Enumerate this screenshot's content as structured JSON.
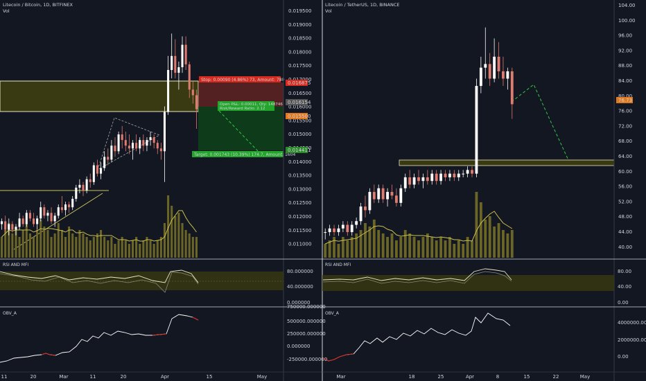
{
  "colors": {
    "background": "#131722",
    "up": "#ffffff",
    "down": "#e07b6f",
    "volume": "#6b6526",
    "volume_line": "#ccc04a",
    "zone_fill": "#3a3a12",
    "zone_border": "#e8e8c0",
    "stop_fill": "#8a2a22",
    "target_fill": "#0d4a1a",
    "stop_label": "#d62a1e",
    "target_label": "#22a52a",
    "dashed": "#2ecc40",
    "rsi_line": "#e8e8c0",
    "rsi_band": "#3a3a12",
    "obv_line": "#ffffff",
    "obv_down": "#d62a1e",
    "price_tag_green": "#2a8a2a",
    "price_tag_red": "#d62a1e",
    "price_tag_orange": "#e0791e",
    "price_tag_gray": "#555555"
  },
  "left": {
    "title": "Litecoin / Bitcoin, 1D, BITFINEX",
    "vol_label": "Vol",
    "price_ticks": [
      "0.019500",
      "0.019000",
      "0.018500",
      "0.018000",
      "0.017500",
      "0.017000",
      "0.016500",
      "0.016000",
      "0.015500",
      "0.015000",
      "0.014500",
      "0.014000",
      "0.013500",
      "0.013000",
      "0.012500",
      "0.012000",
      "0.011500",
      "0.011000"
    ],
    "position": {
      "stop_text": "Stop: 0.00090 (4.86%) 73, Amount: 780",
      "target_text": "Target: 0.001743 (10.39%) 174.7, Amount: 1604",
      "pnl_text": "Open P&L: 0.00011, Qty: 148746",
      "rr_text": "Risk/Reward Ratio: 2.12"
    },
    "price_tags": {
      "stop": "0.016875",
      "current": "0.016154",
      "entry": "0.015500",
      "target": "0.014411"
    },
    "rsi_label": "RSI AND MFI",
    "rsi_ticks": [
      "80.000000",
      "40.000000",
      "0.000000"
    ],
    "obv_label": "OBV_A",
    "obv_ticks": [
      "750000.000000",
      "500000.000000",
      "250000.000000",
      "0.000000",
      "-250000.000000"
    ],
    "time_ticks": [
      "11",
      "20",
      "Mar",
      "11",
      "20",
      "Apr",
      "15",
      "May"
    ]
  },
  "right": {
    "title": "Litecoin / TetherUS, 1D, BINANCE",
    "vol_label": "Vol",
    "price_ticks": [
      "104.00",
      "100.00",
      "96.00",
      "92.00",
      "88.00",
      "84.00",
      "80.00",
      "76.00",
      "72.00",
      "68.00",
      "64.00",
      "60.00",
      "56.00",
      "52.00",
      "48.00",
      "44.00",
      "40.00"
    ],
    "price_tags": {
      "current": "76.73"
    },
    "rsi_label": "RSI AND MFI",
    "rsi_ticks": [
      "80.00",
      "40.00",
      "0.00"
    ],
    "obv_label": "OBV_A",
    "obv_ticks": [
      "4000000.00",
      "2000000.00",
      "0.00"
    ],
    "time_ticks": [
      "Mar",
      "18",
      "25",
      "Apr",
      "8",
      "15",
      "22",
      "May"
    ]
  },
  "chart_data": [
    {
      "type": "candlestick",
      "title": "Litecoin / Bitcoin, 1D, BITFINEX",
      "ylim": [
        0.0108,
        0.0198
      ],
      "series": [
        {
          "name": "LTC/BTC",
          "values": [
            [
              0.012,
              0.0122,
              0.0118,
              0.0121
            ],
            [
              0.0121,
              0.0123,
              0.0117,
              0.0118
            ],
            [
              0.0118,
              0.0122,
              0.0116,
              0.012
            ],
            [
              0.012,
              0.0121,
              0.0117,
              0.0118
            ],
            [
              0.0118,
              0.012,
              0.0116,
              0.0119
            ],
            [
              0.0119,
              0.0124,
              0.0118,
              0.0122
            ],
            [
              0.0122,
              0.0123,
              0.0119,
              0.012
            ],
            [
              0.012,
              0.0125,
              0.0119,
              0.0124
            ],
            [
              0.0124,
              0.0125,
              0.0121,
              0.0122
            ],
            [
              0.0122,
              0.0124,
              0.0119,
              0.012
            ],
            [
              0.012,
              0.0123,
              0.0118,
              0.0122
            ],
            [
              0.0122,
              0.0128,
              0.0121,
              0.0126
            ],
            [
              0.0126,
              0.0127,
              0.0122,
              0.0123
            ],
            [
              0.0123,
              0.0125,
              0.0121,
              0.0124
            ],
            [
              0.0124,
              0.0126,
              0.012,
              0.0121
            ],
            [
              0.0121,
              0.0124,
              0.0119,
              0.0123
            ],
            [
              0.0123,
              0.0127,
              0.0122,
              0.0126
            ],
            [
              0.0126,
              0.013,
              0.0124,
              0.0125
            ],
            [
              0.0125,
              0.0128,
              0.0123,
              0.0127
            ],
            [
              0.0127,
              0.0128,
              0.0124,
              0.0126
            ],
            [
              0.0126,
              0.013,
              0.0125,
              0.0129
            ],
            [
              0.0129,
              0.0134,
              0.0128,
              0.0133
            ],
            [
              0.0133,
              0.0136,
              0.0131,
              0.0134
            ],
            [
              0.0134,
              0.0135,
              0.013,
              0.0132
            ],
            [
              0.0132,
              0.0137,
              0.0131,
              0.0136
            ],
            [
              0.0136,
              0.0138,
              0.0133,
              0.0135
            ],
            [
              0.0135,
              0.0142,
              0.0134,
              0.0141
            ],
            [
              0.0141,
              0.0143,
              0.0137,
              0.0138
            ],
            [
              0.0138,
              0.0142,
              0.0136,
              0.014
            ],
            [
              0.014,
              0.0146,
              0.0139,
              0.0144
            ],
            [
              0.0144,
              0.0147,
              0.0141,
              0.0143
            ],
            [
              0.0143,
              0.015,
              0.0142,
              0.0148
            ],
            [
              0.0148,
              0.0151,
              0.0144,
              0.0146
            ],
            [
              0.0146,
              0.0153,
              0.0145,
              0.0152
            ],
            [
              0.0152,
              0.0155,
              0.0147,
              0.015
            ],
            [
              0.015,
              0.0153,
              0.0146,
              0.0148
            ],
            [
              0.0148,
              0.0152,
              0.0145,
              0.0147
            ],
            [
              0.0147,
              0.015,
              0.0143,
              0.0149
            ],
            [
              0.0149,
              0.0152,
              0.0146,
              0.0147
            ],
            [
              0.0147,
              0.0151,
              0.0145,
              0.015
            ],
            [
              0.015,
              0.0152,
              0.0146,
              0.0148
            ],
            [
              0.0148,
              0.0151,
              0.0146,
              0.015
            ],
            [
              0.015,
              0.0153,
              0.0148,
              0.0151
            ],
            [
              0.0151,
              0.0152,
              0.0147,
              0.0149
            ],
            [
              0.0149,
              0.015,
              0.0145,
              0.0147
            ],
            [
              0.0147,
              0.0149,
              0.0143,
              0.0146
            ],
            [
              0.0146,
              0.0162,
              0.0135,
              0.016
            ],
            [
              0.016,
              0.018,
              0.0159,
              0.0175
            ],
            [
              0.0175,
              0.0188,
              0.0172,
              0.018
            ],
            [
              0.018,
              0.0186,
              0.0172,
              0.0174
            ],
            [
              0.0174,
              0.0178,
              0.0168,
              0.0176
            ],
            [
              0.0176,
              0.0187,
              0.0174,
              0.0184
            ],
            [
              0.0184,
              0.0187,
              0.0175,
              0.0177
            ],
            [
              0.0177,
              0.0178,
              0.0165,
              0.0168
            ],
            [
              0.0168,
              0.0171,
              0.0163,
              0.0166
            ],
            [
              0.0166,
              0.0168,
              0.0154,
              0.0161
            ]
          ]
        }
      ],
      "volume": [
        0.3,
        0.4,
        0.5,
        0.35,
        0.45,
        0.3,
        0.4,
        0.5,
        0.35,
        0.3,
        0.4,
        0.55,
        0.45,
        0.4,
        0.3,
        0.35,
        0.5,
        0.4,
        0.3,
        0.45,
        0.35,
        0.3,
        0.4,
        0.35,
        0.3,
        0.25,
        0.3,
        0.35,
        0.4,
        0.3,
        0.25,
        0.3,
        0.2,
        0.25,
        0.3,
        0.25,
        0.2,
        0.25,
        0.3,
        0.2,
        0.25,
        0.3,
        0.25,
        0.2,
        0.25,
        0.3,
        0.5,
        0.9,
        0.75,
        0.6,
        0.65,
        0.5,
        0.4,
        0.35,
        0.3,
        0.3
      ]
    },
    {
      "type": "candlestick",
      "title": "Litecoin / TetherUS, 1D, BINANCE",
      "ylim": [
        37,
        106
      ],
      "series": [
        {
          "name": "LTC/USDT",
          "values": [
            [
              44,
              45,
              42,
              44
            ],
            [
              44,
              46,
              43,
              45
            ],
            [
              45,
              46,
              43,
              44
            ],
            [
              44,
              46,
              43,
              45
            ],
            [
              45,
              47,
              44,
              46
            ],
            [
              46,
              47,
              43,
              44
            ],
            [
              44,
              47,
              43,
              46
            ],
            [
              46,
              48,
              45,
              47
            ],
            [
              47,
              52,
              46,
              51
            ],
            [
              51,
              54,
              48,
              50
            ],
            [
              50,
              56,
              49,
              55
            ],
            [
              55,
              57,
              52,
              53
            ],
            [
              53,
              57,
              52,
              56
            ],
            [
              56,
              57,
              52,
              53
            ],
            [
              53,
              56,
              51,
              55
            ],
            [
              55,
              57,
              53,
              54
            ],
            [
              54,
              56,
              51,
              52
            ],
            [
              52,
              57,
              51,
              56
            ],
            [
              56,
              60,
              55,
              59
            ],
            [
              59,
              61,
              56,
              57
            ],
            [
              57,
              60,
              56,
              59
            ],
            [
              59,
              61,
              57,
              58
            ],
            [
              58,
              60,
              56,
              59
            ],
            [
              59,
              61,
              57,
              58
            ],
            [
              58,
              61,
              57,
              60
            ],
            [
              60,
              61,
              57,
              58
            ],
            [
              58,
              61,
              57,
              60
            ],
            [
              60,
              61,
              58,
              59
            ],
            [
              59,
              61,
              58,
              60
            ],
            [
              60,
              61,
              58,
              59
            ],
            [
              59,
              61,
              58,
              60
            ],
            [
              60,
              61,
              59,
              60
            ],
            [
              60,
              62,
              59,
              61
            ],
            [
              61,
              62,
              59,
              60
            ],
            [
              60,
              86,
              59,
              84
            ],
            [
              84,
              92,
              82,
              89
            ],
            [
              89,
              100,
              86,
              90
            ],
            [
              90,
              93,
              84,
              86
            ],
            [
              86,
              97,
              85,
              92
            ],
            [
              92,
              96,
              86,
              88
            ],
            [
              88,
              92,
              84,
              86
            ],
            [
              86,
              89,
              83,
              88
            ],
            [
              88,
              89,
              75,
              79
            ]
          ]
        }
      ],
      "volume": [
        0.2,
        0.25,
        0.3,
        0.2,
        0.3,
        0.25,
        0.3,
        0.35,
        0.4,
        0.5,
        0.45,
        0.55,
        0.4,
        0.35,
        0.3,
        0.35,
        0.25,
        0.3,
        0.4,
        0.35,
        0.3,
        0.25,
        0.3,
        0.35,
        0.3,
        0.25,
        0.3,
        0.25,
        0.3,
        0.2,
        0.25,
        0.2,
        0.3,
        0.25,
        0.95,
        0.8,
        0.55,
        0.6,
        0.45,
        0.5,
        0.4,
        0.35,
        0.4
      ]
    }
  ]
}
